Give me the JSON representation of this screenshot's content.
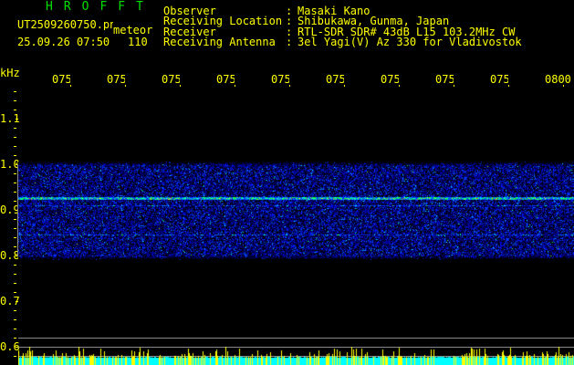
{
  "header": {
    "title": "HROFFT",
    "filename": "UT2509260750.png",
    "mode": "meteor",
    "datetime": "25.09.26 07:50",
    "count": "110",
    "fields": [
      {
        "label": "Observer",
        "value": "Masaki Kano"
      },
      {
        "label": "Receiving Location",
        "value": "Shibukawa, Gunma, Japan"
      },
      {
        "label": "Receiver",
        "value": "RTL-SDR SDR# 43dB L15 103.2MHz CW"
      },
      {
        "label": "Receiving Antenna",
        "value": "3el Yagi(V) Az 330 for Vladivostok"
      }
    ]
  },
  "axes": {
    "y_unit": "kHz",
    "y_ticks": [
      "1.1",
      "1.0",
      "0.9",
      "0.8",
      "0.7",
      "0.6"
    ],
    "x_ticks": [
      "0751",
      "0752",
      "0753",
      "0754",
      "0755",
      "0756",
      "0757",
      "0758",
      "0759",
      "0800"
    ]
  },
  "colors": {
    "text": "#ffff00",
    "title": "#00e000",
    "signal_bar": "#00ffff",
    "meteor_bar": "#ffff00",
    "grid": "#888888"
  }
}
